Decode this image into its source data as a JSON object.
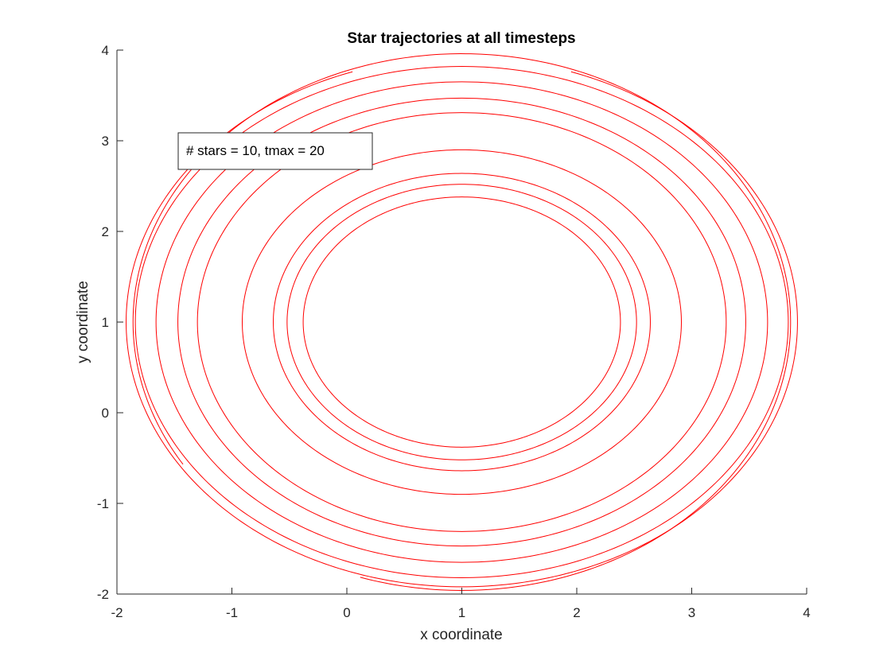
{
  "chart_data": {
    "type": "line",
    "title": "Star trajectories at all timesteps",
    "xlabel": "x coordinate",
    "ylabel": "y coordinate",
    "xlim": [
      -2,
      4
    ],
    "ylim": [
      -2,
      4
    ],
    "xticks": [
      "-2",
      "-1",
      "0",
      "1",
      "2",
      "3",
      "4"
    ],
    "yticks": [
      "-2",
      "-1",
      "0",
      "1",
      "2",
      "3",
      "4"
    ],
    "grid": false,
    "line_color": "#ff0000",
    "annotation": "# stars = 10, tmax = 20",
    "series": [
      {
        "cx": 1,
        "cy": 1,
        "rx": 1.38,
        "ry": 1.38,
        "start_deg": 0,
        "sweep_deg": 360
      },
      {
        "cx": 1,
        "cy": 1,
        "rx": 1.52,
        "ry": 1.52,
        "start_deg": 0,
        "sweep_deg": 360
      },
      {
        "cx": 1,
        "cy": 1,
        "rx": 1.64,
        "ry": 1.64,
        "start_deg": 0,
        "sweep_deg": 360
      },
      {
        "cx": 1,
        "cy": 1,
        "rx": 1.91,
        "ry": 1.9,
        "start_deg": 0,
        "sweep_deg": 360
      },
      {
        "cx": 1,
        "cy": 1,
        "rx": 2.3,
        "ry": 2.31,
        "start_deg": 0,
        "sweep_deg": 360
      },
      {
        "cx": 1,
        "cy": 1,
        "rx": 2.47,
        "ry": 2.47,
        "start_deg": 0,
        "sweep_deg": 360
      },
      {
        "cx": 1,
        "cy": 1,
        "rx": 2.66,
        "ry": 2.65,
        "start_deg": 0,
        "sweep_deg": 360
      },
      {
        "cx": 1,
        "cy": 1,
        "rx": 2.84,
        "ry": 2.82,
        "start_deg": 0,
        "sweep_deg": 360
      },
      {
        "cx": 1,
        "cy": 1,
        "rx": 2.92,
        "ry": 2.92,
        "start_deg": 109,
        "sweep_deg": 322
      },
      {
        "cx": 1,
        "cy": 1,
        "rx": 2.86,
        "ry": 2.96,
        "start_deg": 252,
        "sweep_deg": 320
      }
    ]
  }
}
